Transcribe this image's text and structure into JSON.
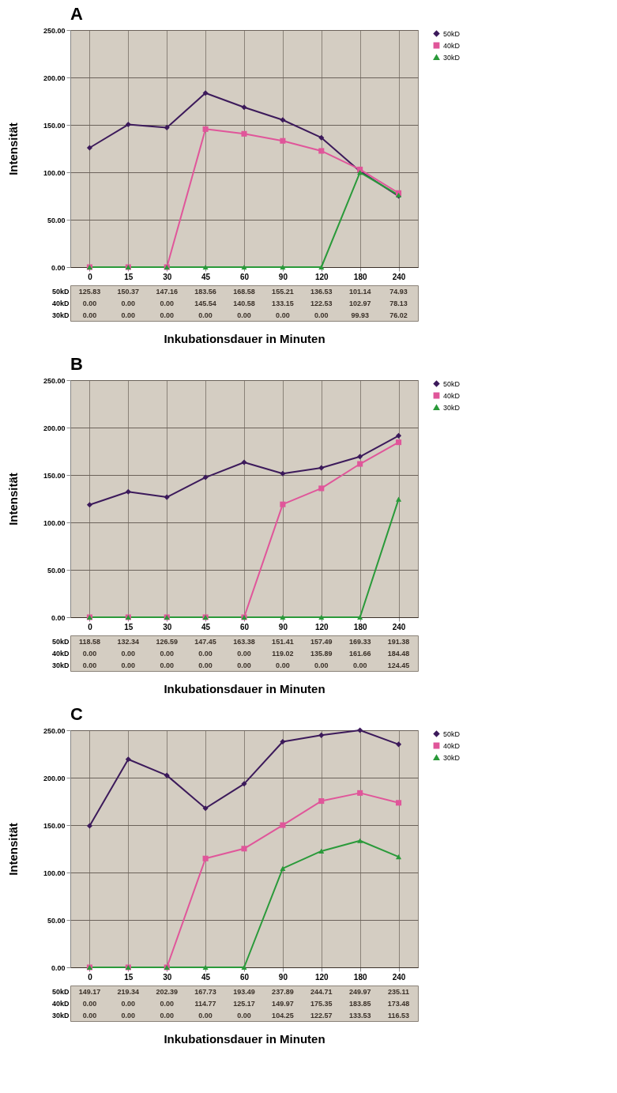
{
  "chart_data": [
    {
      "type": "line",
      "title": "A",
      "xlabel": "Inkubationsdauer in Minuten",
      "ylabel": "Intensität",
      "categories": [
        "0",
        "15",
        "30",
        "45",
        "60",
        "90",
        "120",
        "180",
        "240"
      ],
      "ylim": [
        0,
        250
      ],
      "yticks": [
        {
          "value": 0,
          "label": "0.00"
        },
        {
          "value": 50,
          "label": "50.00"
        },
        {
          "value": 100,
          "label": "100.00"
        },
        {
          "value": 150,
          "label": "150.00"
        },
        {
          "value": 200,
          "label": "200.00"
        },
        {
          "value": 250,
          "label": "250.00"
        }
      ],
      "grid": true,
      "legend": "right",
      "series": [
        {
          "name": "50kD",
          "color": "#3c1a5b",
          "marker": "diamond",
          "values": [
            125.83,
            150.37,
            147.16,
            183.56,
            168.58,
            155.21,
            136.53,
            101.14,
            74.93
          ],
          "value_labels": [
            "125.83",
            "150.37",
            "147.16",
            "183.56",
            "168.58",
            "155.21",
            "136.53",
            "101.14",
            "74.93"
          ]
        },
        {
          "name": "40kD",
          "color": "#e0569a",
          "marker": "square",
          "values": [
            0,
            0,
            0,
            145.54,
            140.58,
            133.15,
            122.53,
            102.97,
            78.13
          ],
          "value_labels": [
            "0.00",
            "0.00",
            "0.00",
            "145.54",
            "140.58",
            "133.15",
            "122.53",
            "102.97",
            "78.13"
          ]
        },
        {
          "name": "30kD",
          "color": "#2a9a3a",
          "marker": "triangle",
          "values": [
            0,
            0,
            0,
            0,
            0,
            0,
            0,
            99.93,
            76.02
          ],
          "value_labels": [
            "0.00",
            "0.00",
            "0.00",
            "0.00",
            "0.00",
            "0.00",
            "0.00",
            "99.93",
            "76.02"
          ]
        }
      ]
    },
    {
      "type": "line",
      "title": "B",
      "xlabel": "Inkubationsdauer in Minuten",
      "ylabel": "Intensität",
      "categories": [
        "0",
        "15",
        "30",
        "45",
        "60",
        "90",
        "120",
        "180",
        "240"
      ],
      "ylim": [
        0,
        250
      ],
      "yticks": [
        {
          "value": 0,
          "label": "0.00"
        },
        {
          "value": 50,
          "label": "50.00"
        },
        {
          "value": 100,
          "label": "100.00"
        },
        {
          "value": 150,
          "label": "150.00"
        },
        {
          "value": 200,
          "label": "200.00"
        },
        {
          "value": 250,
          "label": "250.00"
        }
      ],
      "grid": true,
      "legend": "right",
      "series": [
        {
          "name": "50kD",
          "color": "#3c1a5b",
          "marker": "diamond",
          "values": [
            118.58,
            132.34,
            126.59,
            147.45,
            163.38,
            151.41,
            157.49,
            169.33,
            191.38
          ],
          "value_labels": [
            "118.58",
            "132.34",
            "126.59",
            "147.45",
            "163.38",
            "151.41",
            "157.49",
            "169.33",
            "191.38"
          ]
        },
        {
          "name": "40kD",
          "color": "#e0569a",
          "marker": "square",
          "values": [
            0,
            0,
            0,
            0,
            0,
            119.02,
            135.89,
            161.66,
            184.48
          ],
          "value_labels": [
            "0.00",
            "0.00",
            "0.00",
            "0.00",
            "0.00",
            "119.02",
            "135.89",
            "161.66",
            "184.48"
          ]
        },
        {
          "name": "30kD",
          "color": "#2a9a3a",
          "marker": "triangle",
          "values": [
            0,
            0,
            0,
            0,
            0,
            0,
            0,
            0,
            124.45
          ],
          "value_labels": [
            "0.00",
            "0.00",
            "0.00",
            "0.00",
            "0.00",
            "0.00",
            "0.00",
            "0.00",
            "124.45"
          ]
        }
      ]
    },
    {
      "type": "line",
      "title": "C",
      "xlabel": "Inkubationsdauer in Minuten",
      "ylabel": "Intensität",
      "categories": [
        "0",
        "15",
        "30",
        "45",
        "60",
        "90",
        "120",
        "180",
        "240"
      ],
      "ylim": [
        0,
        250
      ],
      "yticks": [
        {
          "value": 0,
          "label": "0.00"
        },
        {
          "value": 50,
          "label": "50.00"
        },
        {
          "value": 100,
          "label": "100.00"
        },
        {
          "value": 150,
          "label": "150.00"
        },
        {
          "value": 200,
          "label": "200.00"
        },
        {
          "value": 250,
          "label": "250.00"
        }
      ],
      "grid": true,
      "legend": "right",
      "series": [
        {
          "name": "50kD",
          "color": "#3c1a5b",
          "marker": "diamond",
          "values": [
            149.17,
            219.34,
            202.39,
            167.73,
            193.49,
            237.89,
            244.71,
            249.97,
            235.11
          ],
          "value_labels": [
            "149.17",
            "219.34",
            "202.39",
            "167.73",
            "193.49",
            "237.89",
            "244.71",
            "249.97",
            "235.11"
          ]
        },
        {
          "name": "40kD",
          "color": "#e0569a",
          "marker": "square",
          "values": [
            0,
            0,
            0,
            114.77,
            125.17,
            149.97,
            175.35,
            183.85,
            173.48
          ],
          "value_labels": [
            "0.00",
            "0.00",
            "0.00",
            "114.77",
            "125.17",
            "149.97",
            "175.35",
            "183.85",
            "173.48"
          ]
        },
        {
          "name": "30kD",
          "color": "#2a9a3a",
          "marker": "triangle",
          "values": [
            0,
            0,
            0,
            0,
            0,
            104.25,
            122.57,
            133.53,
            116.53
          ],
          "value_labels": [
            "0.00",
            "0.00",
            "0.00",
            "0.00",
            "0.00",
            "104.25",
            "122.57",
            "133.53",
            "116.53"
          ]
        }
      ]
    }
  ]
}
